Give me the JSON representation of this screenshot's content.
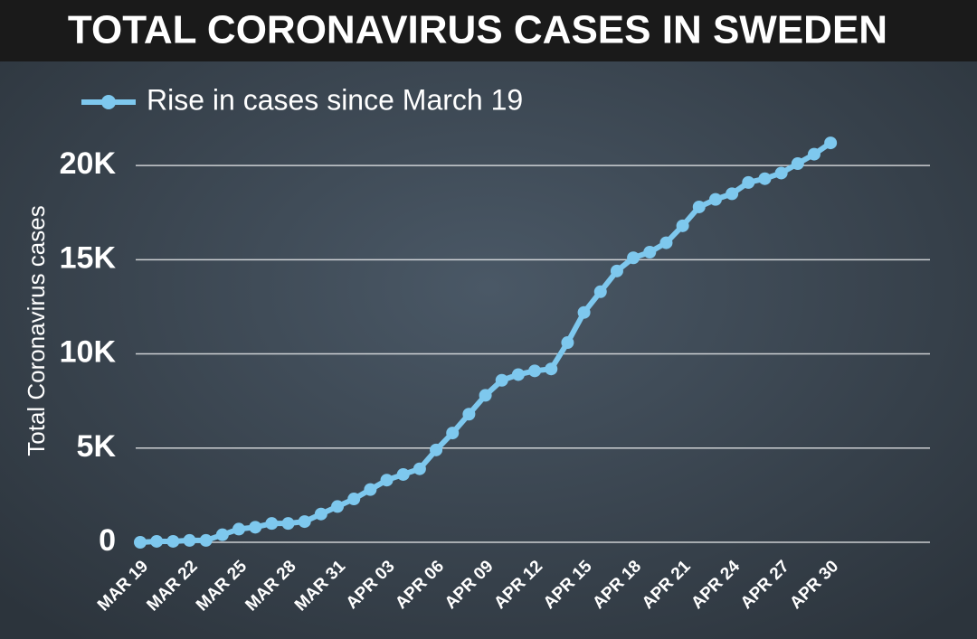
{
  "chart_data": {
    "type": "line",
    "title": "TOTAL CORONAVIRUS CASES IN SWEDEN",
    "y_label": "Total Coronavirus cases",
    "categories": [
      "MAR 19",
      null,
      null,
      "MAR 22",
      null,
      null,
      "MAR 25",
      null,
      null,
      "MAR 28",
      null,
      null,
      "MAR 31",
      null,
      null,
      "APR 03",
      null,
      null,
      "APR 06",
      null,
      null,
      "APR 09",
      null,
      null,
      "APR 12",
      null,
      null,
      "APR 15",
      null,
      null,
      "APR 18",
      null,
      null,
      "APR 21",
      null,
      null,
      "APR 24",
      null,
      null,
      "APR 27",
      null,
      null,
      "APR 30"
    ],
    "series": [
      {
        "name": "Rise in cases since March 19",
        "color": "#7ec8ee",
        "values": [
          0,
          50,
          50,
          100,
          100,
          400,
          700,
          800,
          1000,
          1000,
          1100,
          1500,
          1900,
          2300,
          2800,
          3300,
          3600,
          3900,
          4900,
          5800,
          6800,
          7800,
          8600,
          8900,
          9100,
          9200,
          10600,
          12200,
          13300,
          14400,
          15100,
          15400,
          15900,
          16800,
          17800,
          18200,
          18500,
          19100,
          19300,
          19600,
          20100,
          20600,
          21200
        ]
      }
    ],
    "ylim": [
      0,
      22500
    ],
    "yticks": [
      0,
      {
        "value": 5000,
        "label": "5K"
      },
      {
        "value": 10000,
        "label": "10K"
      },
      {
        "value": 15000,
        "label": "15K"
      },
      {
        "value": 20000,
        "label": "20K"
      }
    ],
    "grid": true,
    "legend": "top-left"
  }
}
